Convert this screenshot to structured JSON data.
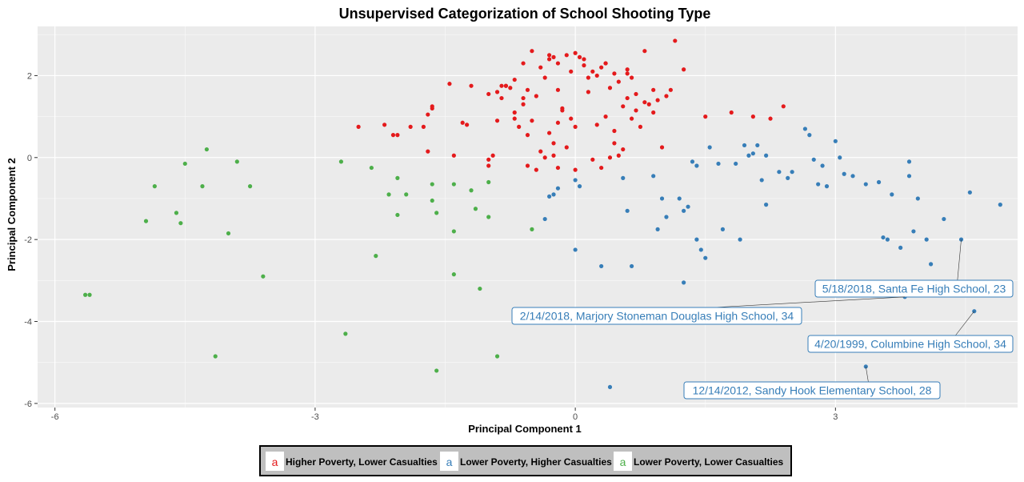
{
  "chart_data": {
    "type": "scatter",
    "title": "Unsupervised Categorization of School Shooting Type",
    "xlabel": "Principal Component 1",
    "ylabel": "Principal Component 2",
    "xlim": [
      -6.2,
      5.1
    ],
    "ylim": [
      -6.1,
      3.2
    ],
    "x_ticks": [
      -6,
      -3,
      0,
      3
    ],
    "y_ticks": [
      -6,
      -4,
      -2,
      0,
      2
    ],
    "x_tick_labels": [
      "-6",
      "-3",
      "0",
      "3"
    ],
    "y_tick_labels": [
      "-6",
      "-4",
      "-2",
      "0",
      "2"
    ],
    "grid": true,
    "legend_position": "bottom",
    "series": [
      {
        "name": "Higher Poverty, Lower Casualties",
        "color": "#e41a1c",
        "key_glyph": "a",
        "points": [
          [
            -2.5,
            0.75
          ],
          [
            -2.2,
            0.8
          ],
          [
            -2.1,
            0.55
          ],
          [
            -2.05,
            0.55
          ],
          [
            -1.9,
            0.75
          ],
          [
            -1.75,
            0.75
          ],
          [
            -1.7,
            0.15
          ],
          [
            -1.7,
            1.05
          ],
          [
            -1.65,
            1.2
          ],
          [
            -1.65,
            1.25
          ],
          [
            -1.45,
            1.8
          ],
          [
            -1.4,
            0.05
          ],
          [
            -1.3,
            0.85
          ],
          [
            -1.25,
            0.8
          ],
          [
            -1.2,
            1.75
          ],
          [
            -1.0,
            -0.05
          ],
          [
            -1.0,
            -0.2
          ],
          [
            -1.0,
            1.55
          ],
          [
            -0.95,
            0.05
          ],
          [
            -0.9,
            1.6
          ],
          [
            -0.85,
            1.45
          ],
          [
            -0.8,
            1.75
          ],
          [
            -0.75,
            1.7
          ],
          [
            -0.7,
            0.95
          ],
          [
            -0.65,
            0.75
          ],
          [
            -0.6,
            1.3
          ],
          [
            -0.55,
            -0.2
          ],
          [
            -0.55,
            0.55
          ],
          [
            -0.5,
            0.9
          ],
          [
            -0.45,
            -0.3
          ],
          [
            -0.45,
            1.5
          ],
          [
            -0.4,
            0.15
          ],
          [
            -0.35,
            1.95
          ],
          [
            -0.3,
            0.6
          ],
          [
            -0.25,
            0.35
          ],
          [
            -0.25,
            0.05
          ],
          [
            -0.2,
            -0.25
          ],
          [
            -0.2,
            0.85
          ],
          [
            -0.2,
            1.65
          ],
          [
            -0.15,
            1.15
          ],
          [
            -0.1,
            0.25
          ],
          [
            -0.05,
            0.95
          ],
          [
            -0.1,
            2.5
          ],
          [
            -0.2,
            2.3
          ],
          [
            -0.3,
            2.5
          ],
          [
            -0.4,
            2.2
          ],
          [
            -0.5,
            2.6
          ],
          [
            -0.6,
            2.3
          ],
          [
            -0.7,
            1.9
          ],
          [
            -0.8,
            1.75
          ],
          [
            0.0,
            2.55
          ],
          [
            0.05,
            2.45
          ],
          [
            0.1,
            2.25
          ],
          [
            0.15,
            1.95
          ],
          [
            0.2,
            2.1
          ],
          [
            0.25,
            0.8
          ],
          [
            0.3,
            2.2
          ],
          [
            0.35,
            2.3
          ],
          [
            0.4,
            1.7
          ],
          [
            0.45,
            0.35
          ],
          [
            0.5,
            0.05
          ],
          [
            0.55,
            1.25
          ],
          [
            0.6,
            2.15
          ],
          [
            0.65,
            1.95
          ],
          [
            0.7,
            1.15
          ],
          [
            0.75,
            0.75
          ],
          [
            0.8,
            2.6
          ],
          [
            0.85,
            1.3
          ],
          [
            0.9,
            1.1
          ],
          [
            0.95,
            1.4
          ],
          [
            1.0,
            0.25
          ],
          [
            1.05,
            1.5
          ],
          [
            1.1,
            1.65
          ],
          [
            1.15,
            2.85
          ],
          [
            1.25,
            2.15
          ],
          [
            1.5,
            1.0
          ],
          [
            1.8,
            1.1
          ],
          [
            2.05,
            1.0
          ],
          [
            2.25,
            0.95
          ],
          [
            2.4,
            1.25
          ],
          [
            0.0,
            -0.3
          ],
          [
            0.2,
            -0.05
          ],
          [
            0.3,
            -0.25
          ],
          [
            0.35,
            1.0
          ],
          [
            0.4,
            0.0
          ],
          [
            0.45,
            0.65
          ],
          [
            0.55,
            0.2
          ],
          [
            0.6,
            1.45
          ],
          [
            0.65,
            0.95
          ],
          [
            0.7,
            1.55
          ],
          [
            -0.15,
            1.2
          ],
          [
            -0.05,
            2.1
          ],
          [
            0.0,
            0.75
          ],
          [
            0.1,
            2.4
          ],
          [
            0.15,
            1.6
          ],
          [
            0.25,
            2.0
          ],
          [
            0.5,
            1.85
          ],
          [
            0.6,
            2.05
          ],
          [
            0.8,
            1.35
          ],
          [
            0.9,
            1.65
          ],
          [
            -0.85,
            1.75
          ],
          [
            -0.9,
            0.9
          ],
          [
            -0.7,
            1.1
          ],
          [
            -0.3,
            2.4
          ],
          [
            -0.25,
            2.45
          ],
          [
            0.35,
            2.3
          ],
          [
            0.45,
            2.05
          ],
          [
            -0.55,
            1.65
          ],
          [
            -0.35,
            0.0
          ],
          [
            -0.6,
            1.45
          ]
        ]
      },
      {
        "name": "Lower Poverty, Higher Casualties",
        "color": "#377eb8",
        "key_glyph": "a",
        "points": [
          [
            -0.35,
            -1.5
          ],
          [
            -0.3,
            -0.95
          ],
          [
            -0.25,
            -0.9
          ],
          [
            -0.2,
            -0.75
          ],
          [
            0.0,
            -2.25
          ],
          [
            0.0,
            -0.55
          ],
          [
            0.05,
            -0.7
          ],
          [
            0.3,
            -2.65
          ],
          [
            0.55,
            -0.5
          ],
          [
            0.6,
            -1.3
          ],
          [
            0.65,
            -2.65
          ],
          [
            0.9,
            -0.45
          ],
          [
            0.95,
            -1.75
          ],
          [
            1.0,
            -1.0
          ],
          [
            1.05,
            -1.45
          ],
          [
            1.2,
            -1.0
          ],
          [
            1.25,
            -1.3
          ],
          [
            1.25,
            -3.05
          ],
          [
            1.3,
            -1.2
          ],
          [
            1.35,
            -0.1
          ],
          [
            1.4,
            -0.2
          ],
          [
            1.4,
            -2.0
          ],
          [
            1.45,
            -2.25
          ],
          [
            1.5,
            -2.45
          ],
          [
            1.55,
            0.25
          ],
          [
            1.65,
            -0.15
          ],
          [
            1.7,
            -1.75
          ],
          [
            1.85,
            -0.15
          ],
          [
            1.9,
            -2.0
          ],
          [
            1.95,
            0.3
          ],
          [
            2.0,
            0.05
          ],
          [
            2.05,
            0.1
          ],
          [
            2.1,
            0.3
          ],
          [
            2.15,
            -0.55
          ],
          [
            2.2,
            0.05
          ],
          [
            2.2,
            -1.15
          ],
          [
            2.35,
            -0.35
          ],
          [
            2.45,
            -0.5
          ],
          [
            2.5,
            -0.35
          ],
          [
            2.65,
            0.7
          ],
          [
            2.7,
            0.55
          ],
          [
            2.75,
            -0.05
          ],
          [
            2.8,
            -0.65
          ],
          [
            2.85,
            -0.2
          ],
          [
            2.9,
            -0.7
          ],
          [
            3.0,
            0.4
          ],
          [
            3.05,
            0.0
          ],
          [
            3.1,
            -0.4
          ],
          [
            3.2,
            -0.45
          ],
          [
            3.35,
            -0.65
          ],
          [
            3.5,
            -0.6
          ],
          [
            3.55,
            -1.95
          ],
          [
            3.6,
            -2.0
          ],
          [
            3.65,
            -0.9
          ],
          [
            3.75,
            -2.2
          ],
          [
            3.8,
            -3.4
          ],
          [
            3.85,
            -0.45
          ],
          [
            3.85,
            -0.1
          ],
          [
            3.9,
            -1.8
          ],
          [
            3.95,
            -1.0
          ],
          [
            4.05,
            -2.0
          ],
          [
            4.1,
            -2.6
          ],
          [
            4.25,
            -1.5
          ],
          [
            4.55,
            -0.85
          ],
          [
            4.9,
            -1.15
          ],
          [
            4.45,
            -2.0
          ],
          [
            4.6,
            -3.75
          ],
          [
            3.35,
            -5.1
          ],
          [
            0.4,
            -5.6
          ]
        ]
      },
      {
        "name": "Lower Poverty, Lower Casualties",
        "color": "#4daf4a",
        "key_glyph": "a",
        "points": [
          [
            -5.65,
            -3.35
          ],
          [
            -5.6,
            -3.35
          ],
          [
            -4.95,
            -1.55
          ],
          [
            -4.85,
            -0.7
          ],
          [
            -4.6,
            -1.35
          ],
          [
            -4.55,
            -1.6
          ],
          [
            -4.5,
            -0.15
          ],
          [
            -4.3,
            -0.7
          ],
          [
            -4.25,
            0.2
          ],
          [
            -4.15,
            -4.85
          ],
          [
            -4.0,
            -1.85
          ],
          [
            -3.9,
            -0.1
          ],
          [
            -3.75,
            -0.7
          ],
          [
            -3.6,
            -2.9
          ],
          [
            -2.7,
            -0.1
          ],
          [
            -2.65,
            -4.3
          ],
          [
            -2.35,
            -0.25
          ],
          [
            -2.3,
            -2.4
          ],
          [
            -2.15,
            -0.9
          ],
          [
            -2.05,
            -0.5
          ],
          [
            -2.05,
            -1.4
          ],
          [
            -1.95,
            -0.9
          ],
          [
            -1.65,
            -0.65
          ],
          [
            -1.65,
            -1.05
          ],
          [
            -1.6,
            -1.35
          ],
          [
            -1.6,
            -5.2
          ],
          [
            -1.4,
            -0.65
          ],
          [
            -1.4,
            -1.8
          ],
          [
            -1.4,
            -2.85
          ],
          [
            -1.2,
            -0.8
          ],
          [
            -1.15,
            -1.25
          ],
          [
            -1.1,
            -3.2
          ],
          [
            -1.0,
            -0.6
          ],
          [
            -1.0,
            -1.45
          ],
          [
            -0.9,
            -4.85
          ],
          [
            -0.5,
            -1.75
          ]
        ]
      }
    ],
    "annotations": [
      {
        "text": "5/18/2018, Santa Fe High School, 23",
        "point": [
          4.45,
          -2.0
        ]
      },
      {
        "text": "2/14/2018, Marjory Stoneman Douglas High School, 34",
        "point": [
          3.8,
          -3.4
        ]
      },
      {
        "text": "4/20/1999, Columbine High School, 34",
        "point": [
          4.6,
          -3.75
        ]
      },
      {
        "text": "12/14/2012, Sandy Hook Elementary School, 28",
        "point": [
          3.35,
          -5.1
        ]
      }
    ]
  }
}
